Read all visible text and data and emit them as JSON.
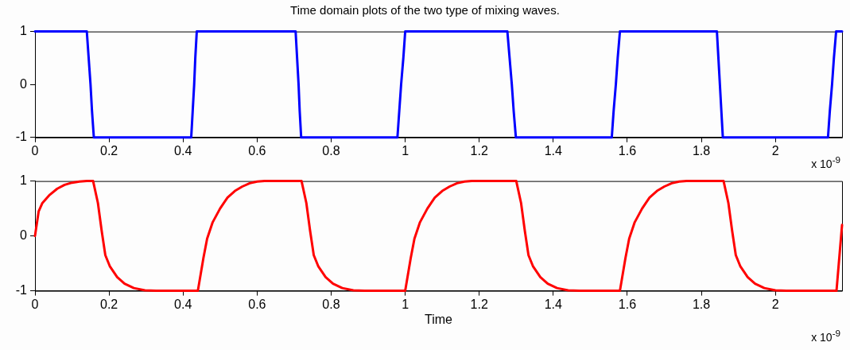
{
  "chart_data": [
    {
      "type": "line",
      "title": "Time domain plots of the two type of mixing waves.",
      "series": [
        {
          "color": "#0000ff",
          "x": [
            0,
            0.14,
            0.145,
            0.15,
            0.154,
            0.159,
            0.422,
            0.426,
            0.43,
            0.433,
            0.437,
            0.704,
            0.708,
            0.712,
            0.715,
            0.719,
            0.979,
            0.984,
            0.989,
            0.995,
            1.0,
            1.276,
            1.282,
            1.288,
            1.293,
            1.299,
            1.558,
            1.563,
            1.569,
            1.574,
            1.58,
            1.842,
            1.846,
            1.85,
            1.854,
            1.858,
            2.142,
            2.147,
            2.153,
            2.158,
            2.164,
            2.18
          ],
          "values": [
            1,
            1,
            0.5,
            0,
            -0.5,
            -1,
            -1,
            -0.5,
            0,
            0.5,
            1,
            1,
            0.5,
            0,
            -0.5,
            -1,
            -1,
            -0.5,
            0,
            0.5,
            1,
            1,
            0.5,
            0,
            -0.5,
            -1,
            -1,
            -0.5,
            0,
            0.5,
            1,
            1,
            0.5,
            0,
            -0.5,
            -1,
            -1,
            -0.5,
            0,
            0.5,
            1,
            1
          ]
        }
      ],
      "xlim": [
        0,
        2.18
      ],
      "xticks": [
        0,
        0.2,
        0.4,
        0.6,
        0.8,
        1,
        1.2,
        1.4,
        1.6,
        1.8,
        2
      ],
      "ylim": [
        -1,
        1
      ],
      "yticks": [
        -1,
        0,
        1
      ],
      "grid": false,
      "legend": false,
      "line_style": "solid",
      "marker": "none",
      "annotations": [
        "x 10$^{-9}$"
      ]
    },
    {
      "type": "line",
      "xlabel": "Time",
      "series": [
        {
          "color": "#ff0000",
          "x": [
            0,
            0.01,
            0.02,
            0.04,
            0.06,
            0.08,
            0.1,
            0.12,
            0.14,
            0.157,
            0.17,
            0.18,
            0.19,
            0.202,
            0.222,
            0.242,
            0.267,
            0.297,
            0.327,
            0.44,
            0.455,
            0.465,
            0.48,
            0.5,
            0.52,
            0.54,
            0.56,
            0.58,
            0.6,
            0.62,
            0.72,
            0.733,
            0.743,
            0.753,
            0.765,
            0.785,
            0.805,
            0.83,
            0.86,
            0.89,
            1.0,
            1.015,
            1.025,
            1.04,
            1.06,
            1.08,
            1.1,
            1.12,
            1.14,
            1.16,
            1.18,
            1.3,
            1.313,
            1.323,
            1.333,
            1.345,
            1.365,
            1.385,
            1.41,
            1.44,
            1.47,
            1.58,
            1.595,
            1.605,
            1.62,
            1.64,
            1.66,
            1.68,
            1.7,
            1.72,
            1.74,
            1.76,
            1.86,
            1.873,
            1.883,
            1.893,
            1.905,
            1.925,
            1.945,
            1.97,
            2.0,
            2.03,
            2.165,
            2.175,
            2.18
          ],
          "values": [
            0,
            0.45,
            0.6,
            0.75,
            0.86,
            0.93,
            0.97,
            0.99,
            1,
            1,
            0.6,
            0.1,
            -0.35,
            -0.55,
            -0.75,
            -0.87,
            -0.95,
            -0.99,
            -1,
            -1,
            -0.4,
            -0.05,
            0.25,
            0.5,
            0.7,
            0.82,
            0.9,
            0.96,
            0.99,
            1,
            1,
            0.6,
            0.1,
            -0.35,
            -0.55,
            -0.75,
            -0.87,
            -0.95,
            -0.99,
            -1,
            -1,
            -0.4,
            -0.05,
            0.25,
            0.5,
            0.7,
            0.82,
            0.9,
            0.96,
            0.99,
            1,
            1,
            0.6,
            0.1,
            -0.35,
            -0.55,
            -0.75,
            -0.87,
            -0.95,
            -0.99,
            -1,
            -1,
            -0.4,
            -0.05,
            0.25,
            0.5,
            0.7,
            0.82,
            0.9,
            0.96,
            0.99,
            1,
            1,
            0.6,
            0.1,
            -0.35,
            -0.55,
            -0.75,
            -0.87,
            -0.95,
            -0.99,
            -1,
            -1,
            -0.2,
            0.2
          ]
        }
      ],
      "xlim": [
        0,
        2.18
      ],
      "xticks": [
        0,
        0.2,
        0.4,
        0.6,
        0.8,
        1,
        1.2,
        1.4,
        1.6,
        1.8,
        2
      ],
      "ylim": [
        -1,
        1
      ],
      "yticks": [
        -1,
        0,
        1
      ],
      "grid": false,
      "legend": false,
      "line_style": "solid",
      "marker": "none",
      "annotations": [
        "x 10$^{-9}$"
      ]
    }
  ]
}
